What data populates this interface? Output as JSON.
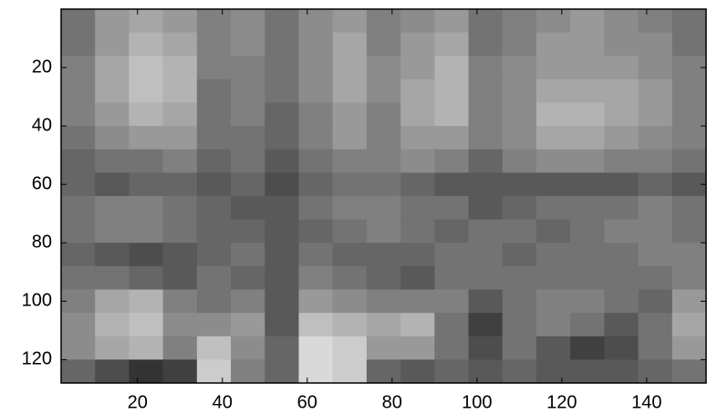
{
  "chart_data": {
    "type": "heatmap",
    "colormap": "gray",
    "x": [
      6,
      14,
      22,
      30,
      38,
      46,
      54,
      62,
      70,
      78,
      86,
      94,
      102,
      110,
      118,
      126,
      134,
      142,
      150
    ],
    "y": [
      4,
      12,
      20,
      28,
      36,
      44,
      52,
      60,
      68,
      76,
      84,
      92,
      100,
      108,
      116,
      124
    ],
    "values": [
      [
        0.45,
        0.6,
        0.65,
        0.6,
        0.5,
        0.55,
        0.45,
        0.55,
        0.6,
        0.5,
        0.55,
        0.6,
        0.45,
        0.5,
        0.55,
        0.6,
        0.55,
        0.5,
        0.45
      ],
      [
        0.45,
        0.6,
        0.7,
        0.65,
        0.5,
        0.55,
        0.45,
        0.55,
        0.65,
        0.5,
        0.6,
        0.65,
        0.45,
        0.5,
        0.6,
        0.6,
        0.55,
        0.55,
        0.45
      ],
      [
        0.5,
        0.65,
        0.75,
        0.7,
        0.5,
        0.5,
        0.45,
        0.55,
        0.65,
        0.55,
        0.6,
        0.7,
        0.5,
        0.55,
        0.6,
        0.6,
        0.6,
        0.55,
        0.5
      ],
      [
        0.5,
        0.65,
        0.75,
        0.7,
        0.45,
        0.5,
        0.45,
        0.55,
        0.65,
        0.55,
        0.65,
        0.7,
        0.5,
        0.55,
        0.65,
        0.65,
        0.65,
        0.6,
        0.5
      ],
      [
        0.5,
        0.6,
        0.7,
        0.65,
        0.45,
        0.5,
        0.4,
        0.5,
        0.6,
        0.5,
        0.65,
        0.7,
        0.5,
        0.55,
        0.7,
        0.7,
        0.65,
        0.6,
        0.5
      ],
      [
        0.45,
        0.55,
        0.6,
        0.6,
        0.45,
        0.45,
        0.4,
        0.5,
        0.6,
        0.5,
        0.6,
        0.6,
        0.5,
        0.55,
        0.65,
        0.65,
        0.6,
        0.55,
        0.5
      ],
      [
        0.4,
        0.45,
        0.45,
        0.5,
        0.4,
        0.45,
        0.35,
        0.45,
        0.5,
        0.5,
        0.55,
        0.5,
        0.4,
        0.5,
        0.55,
        0.55,
        0.5,
        0.5,
        0.45
      ],
      [
        0.4,
        0.35,
        0.4,
        0.4,
        0.35,
        0.4,
        0.3,
        0.4,
        0.45,
        0.45,
        0.4,
        0.35,
        0.35,
        0.35,
        0.35,
        0.35,
        0.35,
        0.4,
        0.35
      ],
      [
        0.45,
        0.5,
        0.5,
        0.45,
        0.4,
        0.35,
        0.35,
        0.45,
        0.5,
        0.5,
        0.45,
        0.45,
        0.35,
        0.4,
        0.45,
        0.45,
        0.45,
        0.5,
        0.45
      ],
      [
        0.45,
        0.5,
        0.5,
        0.45,
        0.4,
        0.4,
        0.35,
        0.4,
        0.45,
        0.5,
        0.45,
        0.4,
        0.45,
        0.45,
        0.4,
        0.45,
        0.5,
        0.5,
        0.45
      ],
      [
        0.4,
        0.35,
        0.3,
        0.35,
        0.4,
        0.45,
        0.35,
        0.45,
        0.4,
        0.4,
        0.4,
        0.45,
        0.45,
        0.4,
        0.45,
        0.45,
        0.45,
        0.5,
        0.5
      ],
      [
        0.45,
        0.45,
        0.4,
        0.35,
        0.45,
        0.4,
        0.35,
        0.5,
        0.45,
        0.4,
        0.35,
        0.45,
        0.45,
        0.45,
        0.45,
        0.45,
        0.45,
        0.45,
        0.5
      ],
      [
        0.5,
        0.65,
        0.7,
        0.5,
        0.45,
        0.5,
        0.35,
        0.6,
        0.55,
        0.5,
        0.5,
        0.5,
        0.35,
        0.45,
        0.5,
        0.5,
        0.45,
        0.4,
        0.6
      ],
      [
        0.55,
        0.7,
        0.75,
        0.55,
        0.55,
        0.6,
        0.35,
        0.75,
        0.7,
        0.65,
        0.7,
        0.45,
        0.25,
        0.45,
        0.5,
        0.45,
        0.35,
        0.45,
        0.65
      ],
      [
        0.55,
        0.65,
        0.7,
        0.5,
        0.75,
        0.55,
        0.4,
        0.85,
        0.8,
        0.6,
        0.6,
        0.45,
        0.3,
        0.45,
        0.35,
        0.25,
        0.3,
        0.45,
        0.6
      ],
      [
        0.4,
        0.3,
        0.2,
        0.25,
        0.8,
        0.5,
        0.4,
        0.85,
        0.8,
        0.4,
        0.35,
        0.4,
        0.35,
        0.4,
        0.35,
        0.35,
        0.35,
        0.4,
        0.45
      ]
    ],
    "xlim": [
      2,
      154
    ],
    "ylim": [
      128,
      0
    ],
    "xticks": [
      20,
      40,
      60,
      80,
      100,
      120,
      140
    ],
    "yticks": [
      20,
      40,
      60,
      80,
      100,
      120
    ]
  }
}
